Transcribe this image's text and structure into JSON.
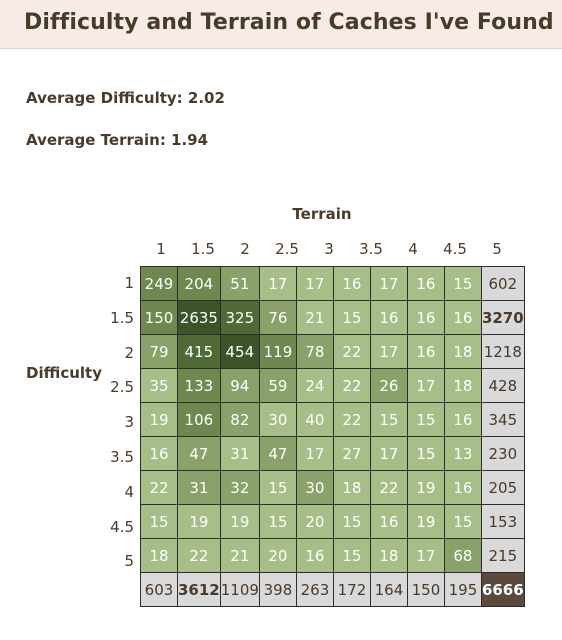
{
  "title": "Difficulty and Terrain of Caches I've Found",
  "avg_difficulty": "Average Difficulty: 2.02",
  "avg_terrain": "Average Terrain: 1.94",
  "terrain_label": "Terrain",
  "difficulty_label": "Difficulty",
  "terrain_levels": [
    "1",
    "1.5",
    "2",
    "2.5",
    "3",
    "3.5",
    "4",
    "4.5",
    "5"
  ],
  "difficulty_levels": [
    "1",
    "1.5",
    "2",
    "2.5",
    "3",
    "3.5",
    "4",
    "4.5",
    "5"
  ],
  "matrix": [
    [
      249,
      204,
      51,
      17,
      17,
      16,
      17,
      16,
      15
    ],
    [
      150,
      2635,
      325,
      76,
      21,
      15,
      16,
      16,
      16
    ],
    [
      79,
      415,
      454,
      119,
      78,
      22,
      17,
      16,
      18
    ],
    [
      35,
      133,
      94,
      59,
      24,
      22,
      26,
      17,
      18
    ],
    [
      19,
      106,
      82,
      30,
      40,
      22,
      15,
      15,
      16
    ],
    [
      16,
      47,
      31,
      47,
      17,
      27,
      17,
      15,
      13
    ],
    [
      22,
      31,
      32,
      15,
      30,
      18,
      22,
      19,
      16
    ],
    [
      15,
      19,
      19,
      15,
      20,
      15,
      16,
      19,
      15
    ],
    [
      18,
      22,
      21,
      20,
      16,
      15,
      18,
      17,
      68
    ]
  ],
  "row_totals": [
    602,
    3270,
    1218,
    428,
    345,
    230,
    205,
    153,
    215
  ],
  "col_totals": [
    603,
    3612,
    1109,
    398,
    263,
    172,
    164,
    150,
    195
  ],
  "grand_total": 6666,
  "cell_colors": [
    [
      "#6f8850",
      "#6f8850",
      "#8aa26a",
      "#a7be88",
      "#a7be88",
      "#a7be88",
      "#a7be88",
      "#a7be88",
      "#a7be88"
    ],
    [
      "#6f8850",
      "#3d5428",
      "#4f6a37",
      "#8aa26a",
      "#a7be88",
      "#a7be88",
      "#a7be88",
      "#a7be88",
      "#a7be88"
    ],
    [
      "#8aa26a",
      "#4f6a37",
      "#3d5428",
      "#6f8850",
      "#8aa26a",
      "#a7be88",
      "#a7be88",
      "#a7be88",
      "#a7be88"
    ],
    [
      "#a7be88",
      "#6f8850",
      "#8aa26a",
      "#8aa26a",
      "#a7be88",
      "#a7be88",
      "#8aa26a",
      "#a7be88",
      "#a7be88"
    ],
    [
      "#a7be88",
      "#6f8850",
      "#8aa26a",
      "#a7be88",
      "#a7be88",
      "#a7be88",
      "#a7be88",
      "#a7be88",
      "#a7be88"
    ],
    [
      "#a7be88",
      "#8aa26a",
      "#a7be88",
      "#8aa26a",
      "#a7be88",
      "#a7be88",
      "#a7be88",
      "#a7be88",
      "#a7be88"
    ],
    [
      "#a7be88",
      "#8aa26a",
      "#8aa26a",
      "#a7be88",
      "#8aa26a",
      "#a7be88",
      "#a7be88",
      "#a7be88",
      "#a7be88"
    ],
    [
      "#a7be88",
      "#a7be88",
      "#a7be88",
      "#a7be88",
      "#a7be88",
      "#a7be88",
      "#a7be88",
      "#a7be88",
      "#a7be88"
    ],
    [
      "#a7be88",
      "#a7be88",
      "#a7be88",
      "#a7be88",
      "#a7be88",
      "#a7be88",
      "#a7be88",
      "#a7be88",
      "#8aa26a"
    ]
  ]
}
